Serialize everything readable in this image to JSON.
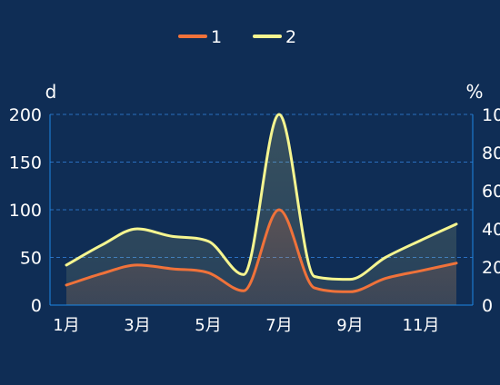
{
  "chart_data": {
    "type": "line",
    "smooth": true,
    "area_fill": true,
    "categories": [
      "1月",
      "2月",
      "3月",
      "4月",
      "5月",
      "6月",
      "7月",
      "8月",
      "9月",
      "10月",
      "11月",
      "12月"
    ],
    "x_tick_labels_shown": [
      "1月",
      "3月",
      "5月",
      "7月",
      "9月",
      "11月"
    ],
    "series": [
      {
        "name": "1",
        "color": "#f0723a",
        "axis": "left",
        "values": [
          21,
          33,
          42,
          38,
          34,
          15,
          100,
          18,
          14,
          28,
          36,
          44
        ]
      },
      {
        "name": "2",
        "color": "#f5f590",
        "axis": "left",
        "values": [
          42,
          63,
          80,
          72,
          67,
          32,
          200,
          30,
          27,
          50,
          68,
          85
        ]
      }
    ],
    "yaxis_left": {
      "label": "d",
      "min": 0,
      "max": 200,
      "ticks": [
        0,
        50,
        100,
        150,
        200
      ]
    },
    "yaxis_right": {
      "label": "%",
      "min": 0,
      "max": 100,
      "ticks": [
        0,
        20,
        40,
        60,
        80,
        100
      ]
    },
    "grid": true,
    "legend_position": "top-center",
    "colors": {
      "background": "#0f2d55",
      "axis": "#1e88e5",
      "grid": "#2a6fc0",
      "text": "#ffffff"
    }
  }
}
